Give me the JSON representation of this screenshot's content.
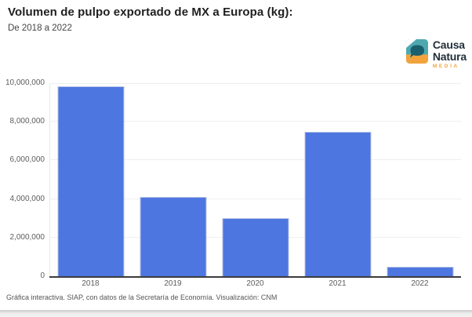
{
  "header": {
    "title": "Volumen de pulpo exportado de MX a Europa (kg):",
    "subtitle": "De 2018 a 2022"
  },
  "logo": {
    "name_line1": "Causa",
    "name_line2": "Natura",
    "tagline": "MEDIA",
    "colors": {
      "teal": "#4fa8b0",
      "dark_teal": "#1a5f6e",
      "orange": "#f2a33c",
      "text": "#22303c"
    }
  },
  "chart_data": {
    "type": "bar",
    "title": "Volumen de pulpo exportado de MX a Europa (kg):",
    "subtitle": "De 2018 a 2022",
    "categories": [
      "2018",
      "2019",
      "2020",
      "2021",
      "2022"
    ],
    "values": [
      9840000,
      4120000,
      3020000,
      7470000,
      500000
    ],
    "xlabel": "",
    "ylabel": "",
    "ylim": [
      0,
      10000000
    ],
    "ytick_interval": 2000000,
    "ytick_labels": [
      "0",
      "2,000,000",
      "4,000,000",
      "6,000,000",
      "8,000,000",
      "10,000,000"
    ],
    "grid": true,
    "legend": "none",
    "bar_color": "#4d76e0",
    "bar_border_color": "#b7c2e4"
  },
  "footer": {
    "source": "Gráfica interactiva. SIAP, con datos de la Secretaría de Economía. Visualización: CNM"
  }
}
